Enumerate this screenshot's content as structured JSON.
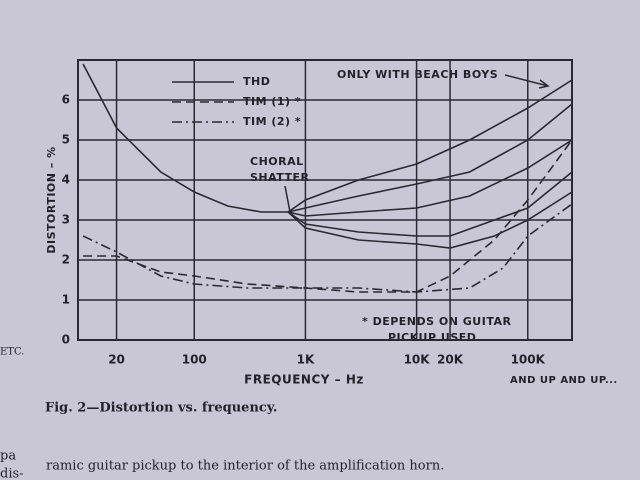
{
  "chart_data": {
    "type": "line",
    "x_label": "FREQUENCY – Hz",
    "y_label": "DISTORTION – %",
    "xlog": true,
    "grid": true,
    "xlim": [
      9,
      250000
    ],
    "ylim": [
      0,
      7
    ],
    "xticks": [
      20,
      100,
      {
        "value": 1000,
        "label": "1K"
      },
      {
        "value": 10000,
        "label": "10K"
      },
      {
        "value": 20000,
        "label": "20K"
      },
      {
        "value": 100000,
        "label": "100K"
      }
    ],
    "yticks": [
      0,
      1,
      2,
      3,
      4,
      5,
      6
    ],
    "color": "#2a2933",
    "series": [
      {
        "name": "THD",
        "style": "solid",
        "x": [
          10,
          20,
          50,
          100,
          200,
          400,
          700
        ],
        "values": [
          6.9,
          5.3,
          4.2,
          3.7,
          3.35,
          3.2,
          3.2
        ]
      },
      {
        "style": "solid",
        "x": [
          700,
          1000,
          3000,
          10000,
          30000,
          100000,
          250000
        ],
        "values": [
          3.2,
          3.5,
          4.0,
          4.4,
          5.0,
          5.8,
          6.5
        ]
      },
      {
        "style": "solid",
        "x": [
          700,
          1000,
          3000,
          10000,
          30000,
          100000,
          250000
        ],
        "values": [
          3.2,
          3.3,
          3.6,
          3.9,
          4.2,
          5.0,
          5.9
        ]
      },
      {
        "style": "solid",
        "x": [
          700,
          1000,
          3000,
          10000,
          30000,
          100000,
          250000
        ],
        "values": [
          3.2,
          3.1,
          3.2,
          3.3,
          3.6,
          4.3,
          5.0
        ]
      },
      {
        "style": "solid",
        "x": [
          700,
          1000,
          3000,
          10000,
          20000,
          100000,
          250000
        ],
        "values": [
          3.2,
          2.9,
          2.7,
          2.6,
          2.6,
          3.3,
          4.2
        ]
      },
      {
        "style": "solid",
        "x": [
          700,
          1000,
          3000,
          10000,
          20000,
          50000,
          100000,
          250000
        ],
        "values": [
          3.2,
          2.8,
          2.5,
          2.4,
          2.3,
          2.6,
          3.0,
          3.7
        ]
      },
      {
        "name": "TIM (1) *",
        "style": "dashed",
        "x": [
          10,
          20,
          50,
          100,
          300,
          1000,
          3000,
          10000,
          20000,
          50000,
          100000,
          250000
        ],
        "values": [
          2.1,
          2.1,
          1.7,
          1.6,
          1.4,
          1.3,
          1.2,
          1.2,
          1.6,
          2.5,
          3.5,
          5.0
        ]
      },
      {
        "name": "TIM (2) *",
        "style": "dashdot",
        "x": [
          10,
          20,
          50,
          100,
          300,
          1000,
          3000,
          10000,
          30000,
          60000,
          100000,
          250000
        ],
        "values": [
          2.6,
          2.2,
          1.6,
          1.4,
          1.3,
          1.3,
          1.3,
          1.2,
          1.3,
          1.8,
          2.6,
          3.4
        ]
      }
    ],
    "annotations": [
      "ONLY WITH BEACH BOYS",
      "CHORAL",
      "SHATTER",
      "* DEPENDS ON GUITAR",
      "PICKUP USED",
      "AND UP AND UP..."
    ],
    "caption": "Fig. 2—Distortion vs. frequency.",
    "margin": [
      "ETC.",
      "pa",
      "dis-"
    ],
    "body_text": "ramic guitar pickup to the interior of the amplification horn."
  }
}
